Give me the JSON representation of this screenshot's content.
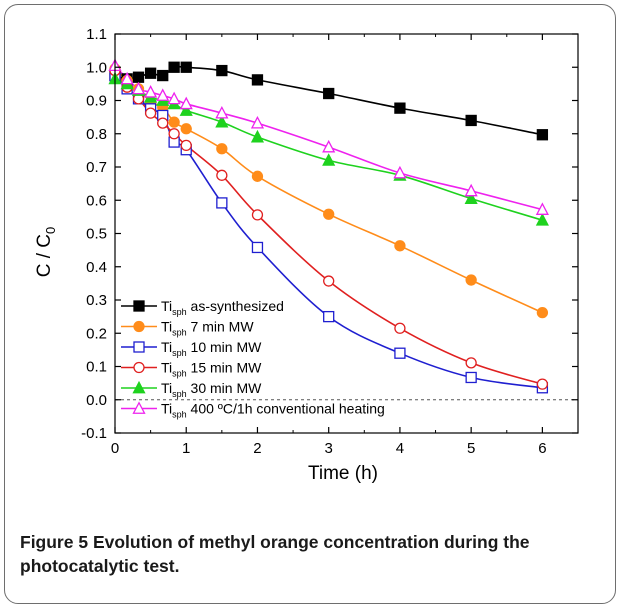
{
  "caption": {
    "label": "Figure 5",
    "text": "Evolution of methyl orange concentration during the photocatalytic test."
  },
  "chart_data": {
    "type": "line",
    "xlabel": "Time (h)",
    "ylabel": {
      "main": "C / C",
      "sub": "0"
    },
    "xlim": [
      0,
      6.5
    ],
    "ylim": [
      -0.1,
      1.1
    ],
    "xticks": [
      0,
      1,
      2,
      3,
      4,
      5,
      6
    ],
    "yticks": [
      -0.1,
      0.0,
      0.1,
      0.2,
      0.3,
      0.4,
      0.5,
      0.6,
      0.7,
      0.8,
      0.9,
      1.0,
      1.1
    ],
    "reference_line": 0.0,
    "legend_position": "bottom-left",
    "series": [
      {
        "prefix": "Ti",
        "sub": "sph",
        "suffix": " as-synthesized",
        "color": "#000000",
        "marker": "square",
        "filled": true,
        "x": [
          0,
          0.17,
          0.33,
          0.5,
          0.67,
          0.83,
          1.0,
          1.5,
          2,
          3,
          4,
          5,
          6
        ],
        "y": [
          0.975,
          0.965,
          0.97,
          0.982,
          0.975,
          1.0,
          1.0,
          0.99,
          0.962,
          0.921,
          0.877,
          0.84,
          0.797
        ]
      },
      {
        "prefix": "Ti",
        "sub": "sph",
        "suffix": " 7 min MW",
        "color": "#ff8c1a",
        "marker": "circle",
        "filled": true,
        "x": [
          0,
          0.17,
          0.33,
          0.5,
          0.67,
          0.83,
          1.0,
          1.5,
          2,
          3,
          4,
          5,
          6
        ],
        "y": [
          0.995,
          0.96,
          0.935,
          0.895,
          0.88,
          0.835,
          0.815,
          0.755,
          0.672,
          0.558,
          0.463,
          0.36,
          0.262
        ]
      },
      {
        "prefix": "Ti",
        "sub": "sph",
        "suffix": " 10 min MW",
        "color": "#1f1fd0",
        "marker": "square",
        "filled": false,
        "x": [
          0,
          0.17,
          0.33,
          0.5,
          0.67,
          0.83,
          1.0,
          1.5,
          2,
          3,
          4,
          5,
          6
        ],
        "y": [
          0.975,
          0.935,
          0.905,
          0.875,
          0.855,
          0.775,
          0.752,
          0.592,
          0.458,
          0.25,
          0.14,
          0.067,
          0.036
        ]
      },
      {
        "prefix": "Ti",
        "sub": "sph",
        "suffix": " 15 min MW",
        "color": "#e02020",
        "marker": "circle",
        "filled": false,
        "x": [
          0,
          0.17,
          0.33,
          0.5,
          0.67,
          0.83,
          1.0,
          1.5,
          2,
          3,
          4,
          5,
          6
        ],
        "y": [
          0.99,
          0.94,
          0.905,
          0.862,
          0.832,
          0.8,
          0.765,
          0.675,
          0.556,
          0.357,
          0.215,
          0.111,
          0.047
        ]
      },
      {
        "prefix": "Ti",
        "sub": "sph",
        "suffix": " 30 min MW",
        "color": "#1ed21e",
        "marker": "triangle",
        "filled": true,
        "x": [
          0,
          0.17,
          0.33,
          0.5,
          0.67,
          0.83,
          1.0,
          1.5,
          2,
          3,
          4,
          5,
          6
        ],
        "y": [
          0.965,
          0.95,
          0.93,
          0.91,
          0.9,
          0.89,
          0.87,
          0.835,
          0.79,
          0.72,
          0.675,
          0.605,
          0.54
        ]
      },
      {
        "prefix": "Ti",
        "sub": "sph",
        "suffix": " 400 ºC/1h conventional heating",
        "color": "#ee22ee",
        "marker": "triangle",
        "filled": false,
        "x": [
          0,
          0.17,
          0.33,
          0.5,
          0.67,
          0.83,
          1.0,
          1.5,
          2,
          3,
          4,
          5,
          6
        ],
        "y": [
          1.005,
          0.965,
          0.935,
          0.925,
          0.915,
          0.905,
          0.89,
          0.862,
          0.832,
          0.76,
          0.682,
          0.628,
          0.572
        ]
      }
    ]
  }
}
